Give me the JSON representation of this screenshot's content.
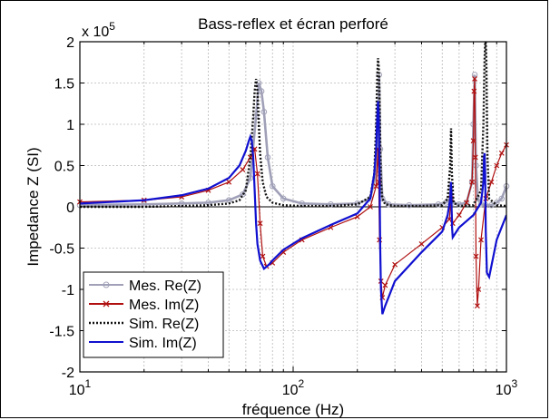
{
  "chart_data": {
    "type": "line",
    "title": "Bass-reflex et écran perforé",
    "xlabel": "fréquence (Hz)",
    "ylabel": "Impedance Z (SI)",
    "x_scale": "log",
    "xlim": [
      10,
      1000
    ],
    "ylim": [
      -200000,
      200000
    ],
    "y_exponent_label": "x 10",
    "y_exponent_power": "5",
    "x_ticks": [
      {
        "value": 10,
        "base": "10",
        "exp": "1"
      },
      {
        "value": 100,
        "base": "10",
        "exp": "2"
      },
      {
        "value": 1000,
        "base": "10",
        "exp": "3"
      }
    ],
    "y_ticks": [
      {
        "value": 200000,
        "label": "2"
      },
      {
        "value": 150000,
        "label": "1.5"
      },
      {
        "value": 100000,
        "label": "1"
      },
      {
        "value": 50000,
        "label": "0.5"
      },
      {
        "value": 0,
        "label": "0"
      },
      {
        "value": -50000,
        "label": "-0.5"
      },
      {
        "value": -100000,
        "label": "-1"
      },
      {
        "value": -150000,
        "label": "-1.5"
      },
      {
        "value": -200000,
        "label": "-2"
      }
    ],
    "grid": true,
    "legend_position": "bottom-left",
    "series": [
      {
        "name": "Mes. Re(Z)",
        "color": "#a0a0b8",
        "style": "solid",
        "marker": "circle",
        "x": [
          10,
          20,
          30,
          40,
          50,
          58,
          63,
          67,
          69,
          71,
          73,
          76,
          80,
          90,
          110,
          150,
          200,
          230,
          245,
          250,
          253,
          256,
          262,
          280,
          350,
          480,
          520,
          540,
          550,
          560,
          600,
          650,
          690,
          700,
          710,
          720,
          735,
          760,
          800,
          850,
          900,
          950,
          1000
        ],
        "y": [
          2000,
          3000,
          4000,
          5000,
          8000,
          15000,
          35000,
          110000,
          150000,
          140000,
          115000,
          60000,
          25000,
          10000,
          4000,
          3000,
          4000,
          10000,
          40000,
          100000,
          160000,
          70000,
          10000,
          3000,
          2000,
          3000,
          5000,
          10000,
          25000,
          5000,
          3000,
          5000,
          30000,
          100000,
          160000,
          50000,
          10000,
          3000,
          2000,
          2000,
          5000,
          10000,
          25000
        ]
      },
      {
        "name": "Mes. Im(Z)",
        "color": "#b01010",
        "style": "solid",
        "marker": "x",
        "x": [
          10,
          20,
          30,
          40,
          50,
          58,
          63,
          66,
          68,
          70,
          72,
          75,
          80,
          90,
          110,
          150,
          200,
          230,
          245,
          250,
          252,
          254,
          258,
          262,
          270,
          300,
          400,
          500,
          540,
          550,
          560,
          600,
          650,
          690,
          700,
          705,
          710,
          715,
          720,
          730,
          740,
          760,
          800,
          850,
          900,
          950,
          1000
        ],
        "y": [
          6000,
          8000,
          12000,
          20000,
          30000,
          45000,
          60000,
          70000,
          40000,
          -20000,
          -60000,
          -72000,
          -68000,
          -55000,
          -40000,
          -25000,
          -12000,
          0,
          25000,
          70000,
          30000,
          -40000,
          -90000,
          -110000,
          -95000,
          -70000,
          -45000,
          -25000,
          -15000,
          10000,
          -20000,
          -10000,
          5000,
          30000,
          80000,
          140000,
          155000,
          60000,
          -60000,
          -120000,
          -100000,
          -40000,
          10000,
          30000,
          50000,
          65000,
          75000
        ]
      },
      {
        "name": "Sim. Re(Z)",
        "color": "#111111",
        "style": "dotted",
        "marker": "none",
        "x": [
          10,
          20,
          30,
          40,
          50,
          56,
          60,
          63,
          65,
          66,
          67,
          68,
          69,
          70,
          72,
          75,
          80,
          90,
          110,
          150,
          200,
          230,
          240,
          245,
          248,
          250,
          252,
          254,
          256,
          258,
          262,
          270,
          300,
          400,
          500,
          530,
          545,
          550,
          555,
          565,
          600,
          700,
          760,
          780,
          790,
          795,
          800,
          805,
          815,
          830,
          900,
          1000
        ],
        "y": [
          0,
          0,
          1000,
          2000,
          4000,
          8000,
          20000,
          60000,
          110000,
          140000,
          155000,
          140000,
          100000,
          65000,
          30000,
          12000,
          5000,
          2000,
          1000,
          1000,
          3000,
          12000,
          40000,
          100000,
          160000,
          180000,
          170000,
          140000,
          80000,
          30000,
          10000,
          3000,
          1000,
          1000,
          2000,
          10000,
          50000,
          95000,
          40000,
          5000,
          1000,
          2000,
          20000,
          100000,
          180000,
          200000,
          200000,
          180000,
          60000,
          10000,
          2000,
          1000
        ]
      },
      {
        "name": "Sim. Im(Z)",
        "color": "#1010d0",
        "style": "solid",
        "marker": "none",
        "x": [
          10,
          20,
          30,
          40,
          50,
          56,
          60,
          62,
          63,
          64,
          65,
          66,
          67,
          68,
          70,
          73,
          77,
          80,
          90,
          110,
          150,
          200,
          230,
          240,
          245,
          248,
          250,
          252,
          254,
          256,
          258,
          262,
          270,
          300,
          400,
          500,
          530,
          545,
          550,
          552,
          556,
          560,
          600,
          700,
          760,
          780,
          785,
          790,
          795,
          800,
          810,
          830,
          900,
          1000
        ],
        "y": [
          4000,
          8000,
          14000,
          22000,
          35000,
          50000,
          68000,
          80000,
          85000,
          80000,
          60000,
          20000,
          -20000,
          -45000,
          -65000,
          -75000,
          -70000,
          -65000,
          -52000,
          -38000,
          -22000,
          -8000,
          10000,
          40000,
          70000,
          110000,
          128000,
          110000,
          40000,
          -50000,
          -100000,
          -130000,
          -120000,
          -90000,
          -55000,
          -30000,
          -10000,
          10000,
          30000,
          10000,
          -25000,
          -37000,
          -25000,
          -10000,
          5000,
          30000,
          60000,
          65000,
          40000,
          -30000,
          -80000,
          -85000,
          -40000,
          -10000
        ]
      }
    ]
  }
}
